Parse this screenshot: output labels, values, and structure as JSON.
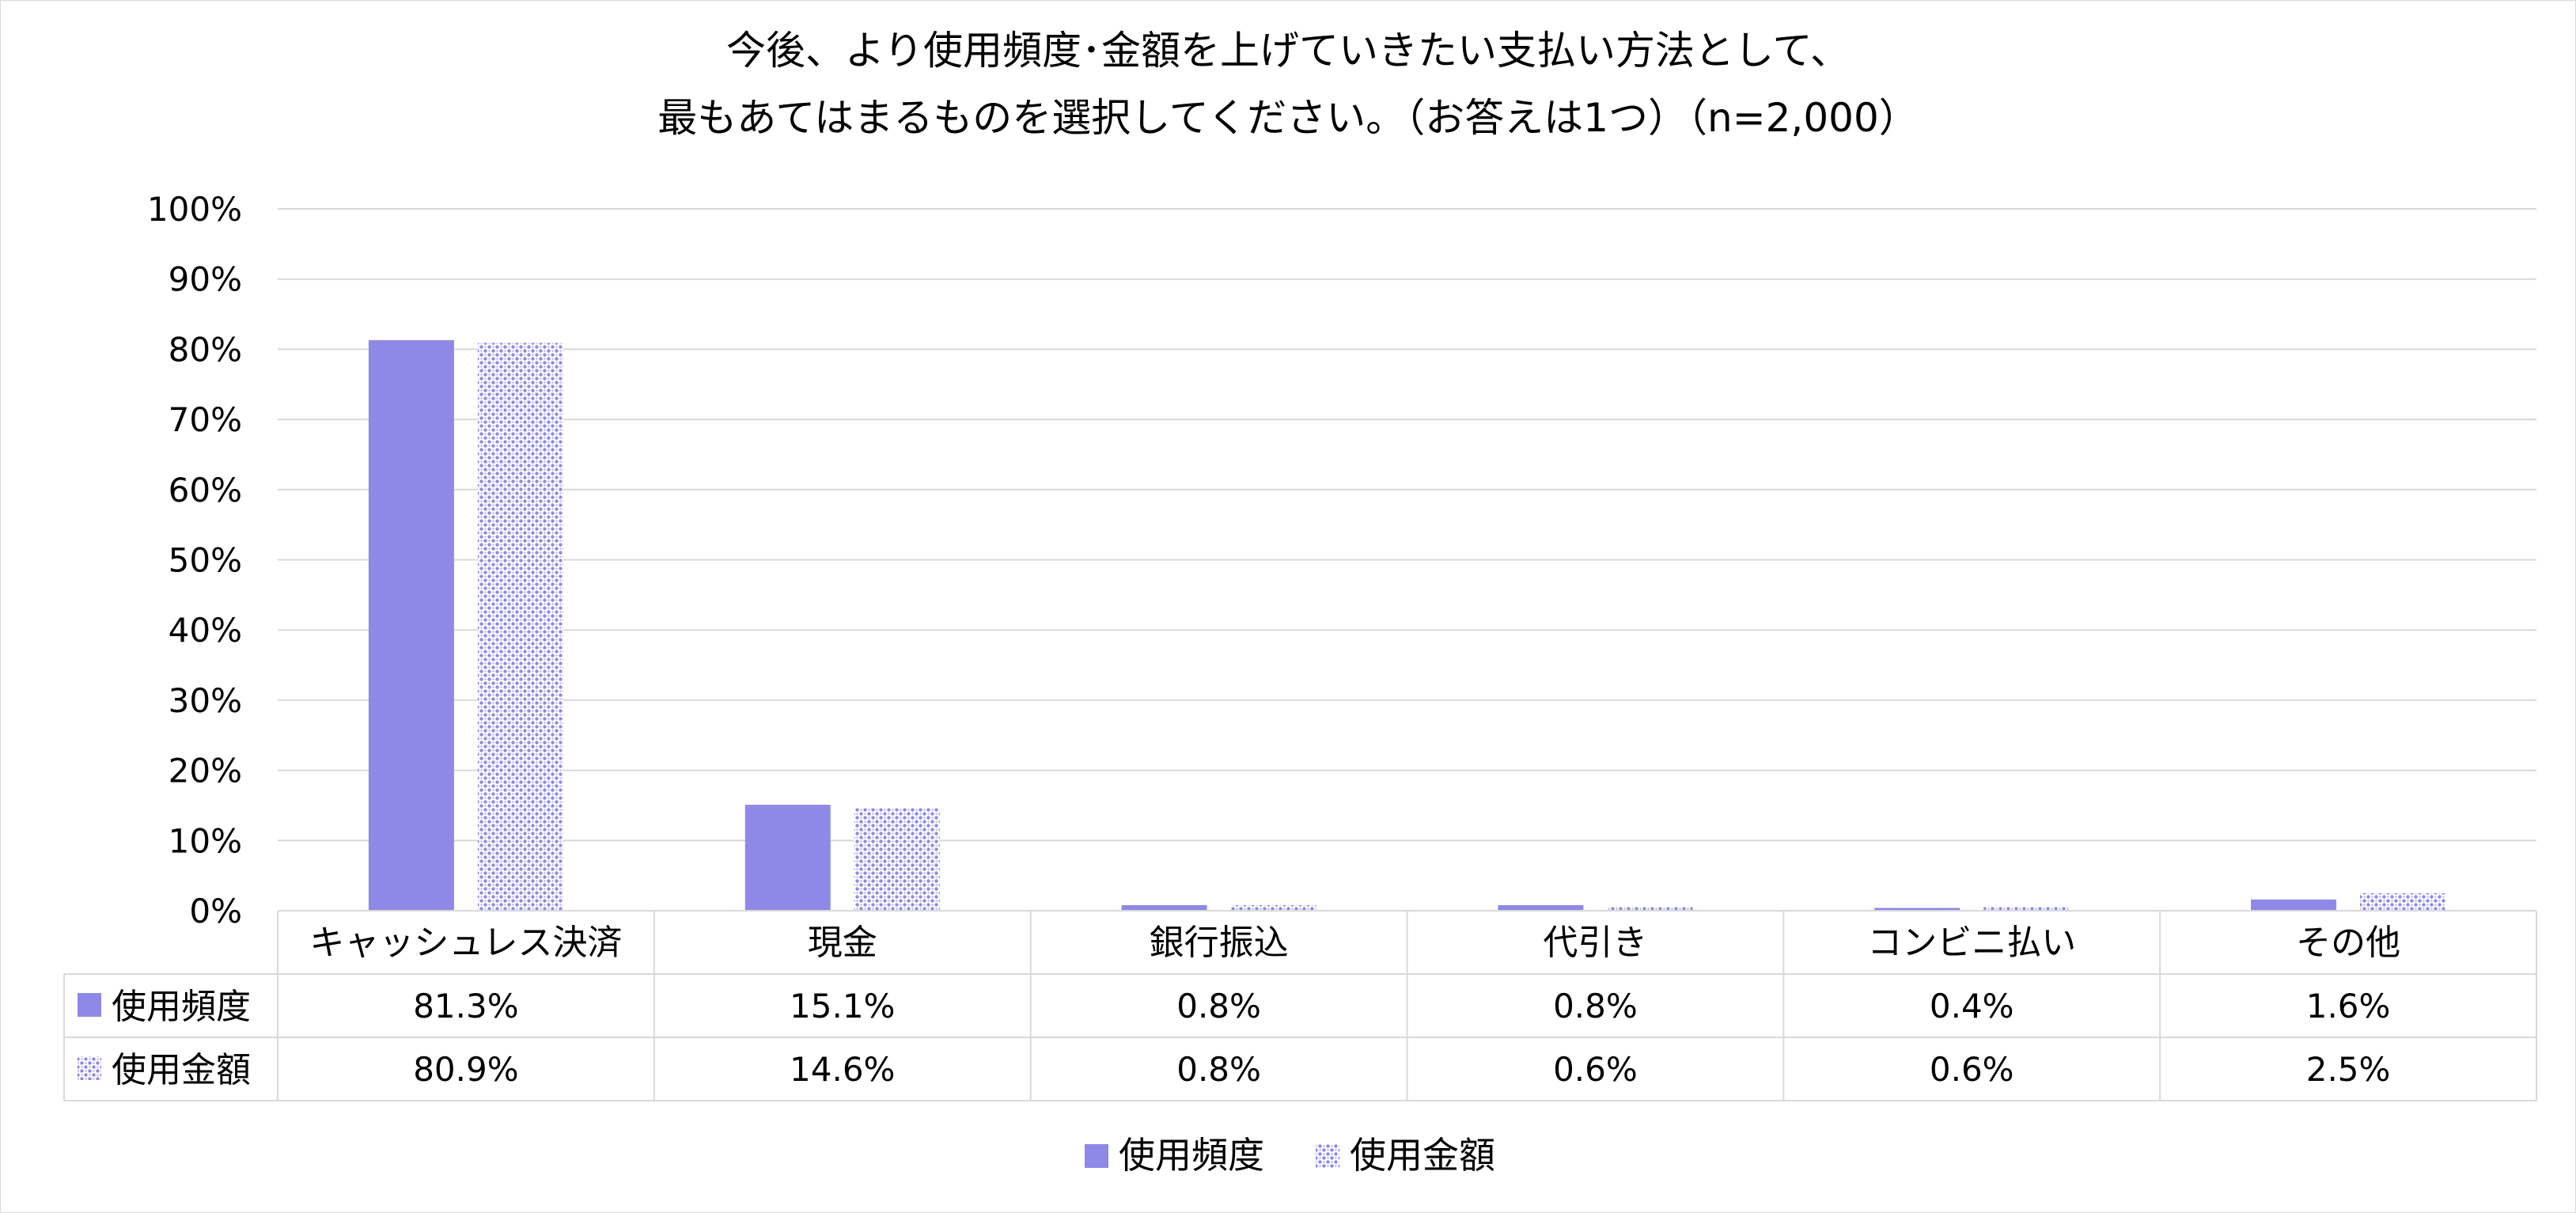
{
  "chart_data": {
    "type": "bar",
    "title_lines": [
      "今後、より使用頻度･金額を上げていきたい支払い方法として、",
      "最もあてはまるものを選択してください。（お答えは1つ）（n=2,000）"
    ],
    "categories": [
      "キャッシュレス決済",
      "現金",
      "銀行振込",
      "代引き",
      "コンビニ払い",
      "その他"
    ],
    "series": [
      {
        "name": "使用頻度",
        "values": [
          81.3,
          15.1,
          0.8,
          0.8,
          0.4,
          1.6
        ],
        "labels": [
          "81.3%",
          "15.1%",
          "0.8%",
          "0.8%",
          "0.4%",
          "1.6%"
        ],
        "color": "#8e89e6",
        "pattern": "solid"
      },
      {
        "name": "使用金額",
        "values": [
          80.9,
          14.6,
          0.8,
          0.6,
          0.6,
          2.5
        ],
        "labels": [
          "80.9%",
          "14.6%",
          "0.8%",
          "0.6%",
          "0.6%",
          "2.5%"
        ],
        "color": "#8e89e6",
        "pattern": "dotted"
      }
    ],
    "ylim": [
      0,
      100
    ],
    "y_ticks": [
      "0%",
      "10%",
      "20%",
      "30%",
      "40%",
      "50%",
      "60%",
      "70%",
      "80%",
      "90%",
      "100%"
    ],
    "grid": true,
    "data_table": true,
    "legend_position": "bottom"
  }
}
